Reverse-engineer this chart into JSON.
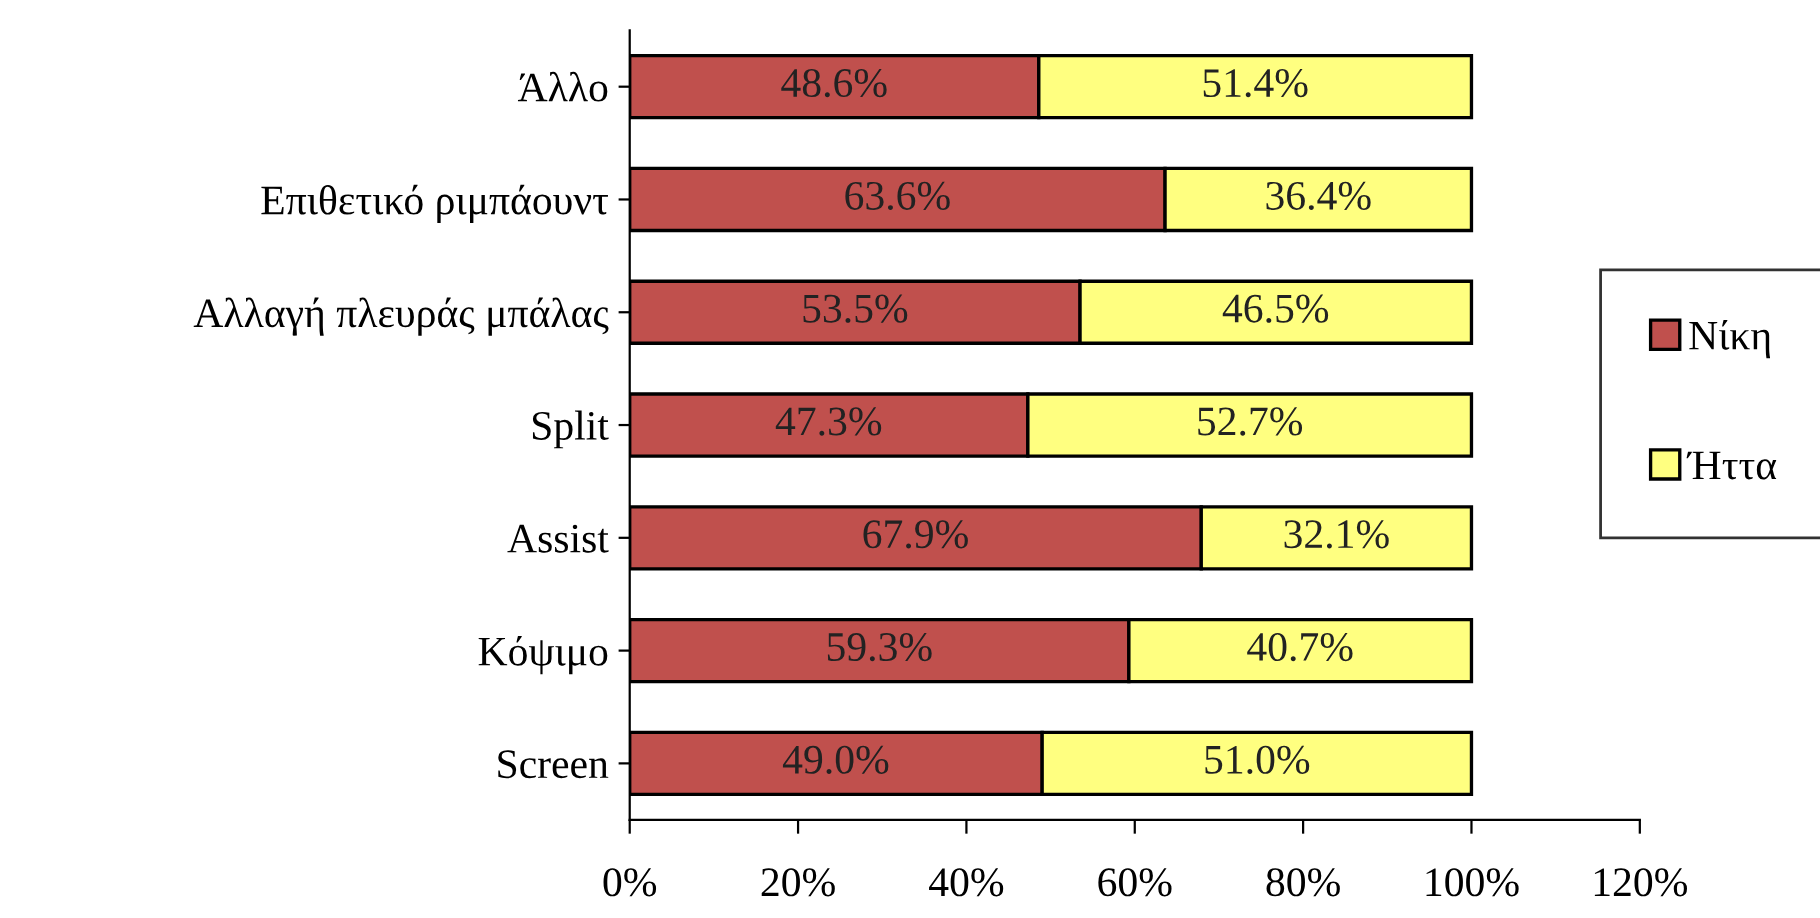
{
  "chart_data": {
    "type": "bar",
    "orientation": "horizontal",
    "stacked": true,
    "categories": [
      "Άλλο",
      "Επιθετικό ριμπάουντ",
      "Αλλαγή πλευράς μπάλας",
      "Split",
      "Assist",
      "Κόψιμο",
      "Screen"
    ],
    "series": [
      {
        "name": "Νίκη",
        "color": "#c0504d",
        "values": [
          48.6,
          63.6,
          53.5,
          47.3,
          67.9,
          59.3,
          49.0
        ],
        "value_labels": [
          "48.6%",
          "63.6%",
          "53.5%",
          "47.3%",
          "67.9%",
          "59.3%",
          "49.0%"
        ]
      },
      {
        "name": "Ήττα",
        "color": "#ffff80",
        "values": [
          51.4,
          36.4,
          46.5,
          52.7,
          32.1,
          40.7,
          51.0
        ],
        "value_labels": [
          "51.4%",
          "36.4%",
          "46.5%",
          "52.7%",
          "32.1%",
          "40.7%",
          "51.0%"
        ]
      }
    ],
    "xlim": [
      0,
      120
    ],
    "xticks": [
      {
        "value": 0,
        "label": "0%"
      },
      {
        "value": 20,
        "label": "20%"
      },
      {
        "value": 40,
        "label": "40%"
      },
      {
        "value": 60,
        "label": "60%"
      },
      {
        "value": 80,
        "label": "80%"
      },
      {
        "value": 100,
        "label": "100%"
      },
      {
        "value": 120,
        "label": "120%"
      }
    ],
    "grid": false,
    "legend": "right"
  }
}
